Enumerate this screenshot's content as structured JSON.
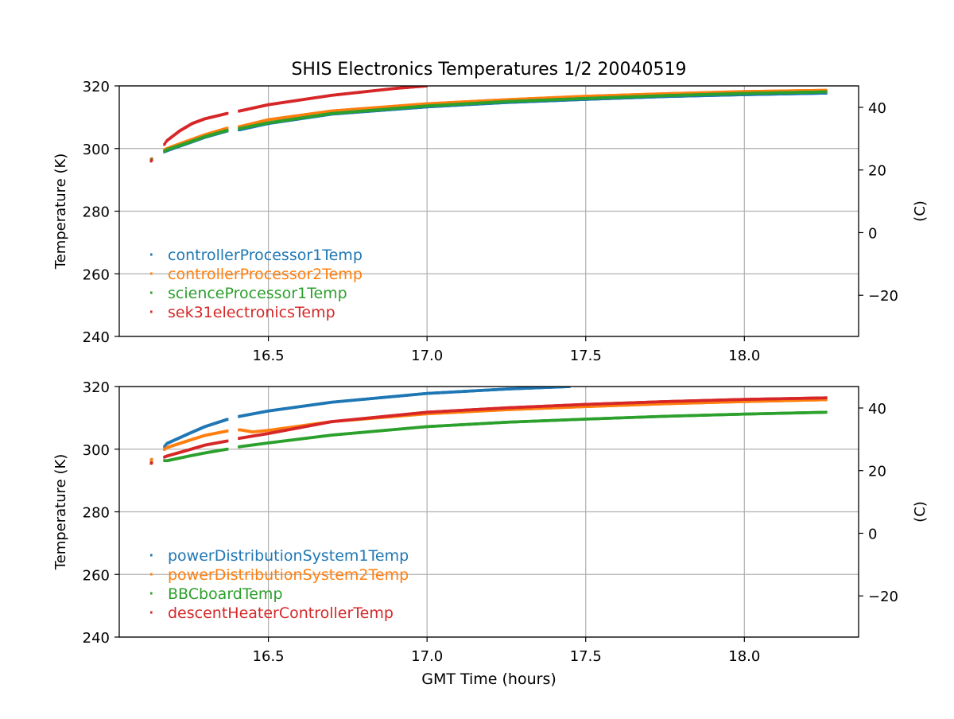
{
  "figure_title": "SHIS Electronics Temperatures 1/2 20040519",
  "xlabel": "GMT Time (hours)",
  "colors": {
    "blue": "#1f77b4",
    "orange": "#ff7f0e",
    "green": "#2ca02c",
    "red": "#d62728",
    "grid": "#b0b0b0",
    "axis": "#000000"
  },
  "chart_data": [
    {
      "type": "scatter",
      "title": "SHIS Electronics Temperatures 1/2 20040519",
      "xlabel": "",
      "ylabel": "Temperature (K)",
      "ylabel_right": "(C)",
      "xlim": [
        16.03,
        18.36
      ],
      "ylim": [
        240,
        320
      ],
      "x_ticks": [
        16.5,
        17.0,
        17.5,
        18.0
      ],
      "x_tick_labels": [
        "16.5",
        "17.0",
        "17.5",
        "18.0"
      ],
      "y_ticks": [
        240,
        260,
        280,
        300,
        320
      ],
      "y_tick_labels": [
        "240",
        "260",
        "280",
        "300",
        "320"
      ],
      "y2_ticks": [
        -20,
        0,
        20,
        40
      ],
      "y2_tick_labels": [
        "−20",
        "0",
        "20",
        "40"
      ],
      "grid": true,
      "legend_position": "lower-left",
      "series": [
        {
          "name": "controllerProcessor1Temp",
          "color": "#1f77b4",
          "points": [
            [
              16.13,
              296.5
            ],
            [
              16.15,
              298.0
            ],
            [
              16.18,
              299.3
            ],
            [
              16.25,
              301.8
            ],
            [
              16.3,
              303.6
            ],
            [
              16.37,
              305.6
            ],
            [
              16.41,
              306.0
            ],
            [
              16.5,
              308.0
            ],
            [
              16.7,
              311.0
            ],
            [
              17.0,
              313.3
            ],
            [
              17.25,
              314.7
            ],
            [
              17.5,
              315.7
            ],
            [
              17.75,
              316.6
            ],
            [
              18.0,
              317.2
            ],
            [
              18.26,
              317.7
            ]
          ]
        },
        {
          "name": "controllerProcessor2Temp",
          "color": "#ff7f0e",
          "points": [
            [
              16.13,
              296.5
            ],
            [
              16.15,
              298.2
            ],
            [
              16.18,
              300.0
            ],
            [
              16.25,
              302.6
            ],
            [
              16.3,
              304.4
            ],
            [
              16.37,
              306.5
            ],
            [
              16.41,
              307.0
            ],
            [
              16.5,
              309.2
            ],
            [
              16.7,
              312.0
            ],
            [
              17.0,
              314.3
            ],
            [
              17.25,
              315.6
            ],
            [
              17.5,
              316.7
            ],
            [
              17.75,
              317.5
            ],
            [
              18.0,
              318.2
            ],
            [
              18.26,
              318.6
            ]
          ]
        },
        {
          "name": "scienceProcessor1Temp",
          "color": "#2ca02c",
          "points": [
            [
              16.13,
              296.3
            ],
            [
              16.15,
              297.8
            ],
            [
              16.18,
              299.6
            ],
            [
              16.25,
              302.0
            ],
            [
              16.3,
              303.8
            ],
            [
              16.37,
              305.8
            ],
            [
              16.41,
              306.4
            ],
            [
              16.5,
              308.2
            ],
            [
              16.7,
              311.2
            ],
            [
              17.0,
              313.6
            ],
            [
              17.25,
              315.0
            ],
            [
              17.5,
              316.0
            ],
            [
              17.75,
              316.9
            ],
            [
              18.0,
              317.6
            ],
            [
              18.26,
              318.1
            ]
          ]
        },
        {
          "name": "sek31electronicsTemp",
          "color": "#d62728",
          "points": [
            [
              16.13,
              296.0
            ],
            [
              16.15,
              298.0
            ],
            [
              16.18,
              302.5
            ],
            [
              16.22,
              305.6
            ],
            [
              16.26,
              308.0
            ],
            [
              16.3,
              309.5
            ],
            [
              16.37,
              311.2
            ],
            [
              16.41,
              312.0
            ],
            [
              16.5,
              314.0
            ],
            [
              16.7,
              317.0
            ],
            [
              16.9,
              319.2
            ],
            [
              17.0,
              320.0
            ]
          ]
        }
      ]
    },
    {
      "type": "scatter",
      "title": "",
      "xlabel": "GMT Time (hours)",
      "ylabel": "Temperature (K)",
      "ylabel_right": "(C)",
      "xlim": [
        16.03,
        18.36
      ],
      "ylim": [
        240,
        320
      ],
      "x_ticks": [
        16.5,
        17.0,
        17.5,
        18.0
      ],
      "x_tick_labels": [
        "16.5",
        "17.0",
        "17.5",
        "18.0"
      ],
      "y_ticks": [
        240,
        260,
        280,
        300,
        320
      ],
      "y_tick_labels": [
        "240",
        "260",
        "280",
        "300",
        "320"
      ],
      "y2_ticks": [
        -20,
        0,
        20,
        40
      ],
      "y2_tick_labels": [
        "−20",
        "0",
        "20",
        "40"
      ],
      "grid": true,
      "legend_position": "lower-left",
      "series": [
        {
          "name": "powerDistributionSystem1Temp",
          "color": "#1f77b4",
          "points": [
            [
              16.13,
              296.5
            ],
            [
              16.15,
              298.0
            ],
            [
              16.18,
              301.8
            ],
            [
              16.25,
              305.0
            ],
            [
              16.3,
              307.2
            ],
            [
              16.37,
              309.5
            ],
            [
              16.41,
              310.5
            ],
            [
              16.5,
              312.2
            ],
            [
              16.7,
              315.0
            ],
            [
              17.0,
              317.8
            ],
            [
              17.25,
              319.2
            ],
            [
              17.45,
              320.0
            ]
          ]
        },
        {
          "name": "powerDistributionSystem2Temp",
          "color": "#ff7f0e",
          "points": [
            [
              16.13,
              296.5
            ],
            [
              16.15,
              298.2
            ],
            [
              16.18,
              300.5
            ],
            [
              16.25,
              302.8
            ],
            [
              16.3,
              304.4
            ],
            [
              16.37,
              305.8
            ],
            [
              16.41,
              306.2
            ],
            [
              16.45,
              305.5
            ],
            [
              16.5,
              306.0
            ],
            [
              16.7,
              308.8
            ],
            [
              17.0,
              311.3
            ],
            [
              17.25,
              312.6
            ],
            [
              17.5,
              313.6
            ],
            [
              17.75,
              314.5
            ],
            [
              18.0,
              315.2
            ],
            [
              18.26,
              315.8
            ]
          ]
        },
        {
          "name": "BBCboardTemp",
          "color": "#2ca02c",
          "points": [
            [
              16.13,
              295.5
            ],
            [
              16.15,
              296.5
            ],
            [
              16.18,
              296.3
            ],
            [
              16.25,
              297.8
            ],
            [
              16.3,
              298.8
            ],
            [
              16.37,
              300.0
            ],
            [
              16.41,
              300.8
            ],
            [
              16.5,
              302.0
            ],
            [
              16.7,
              304.5
            ],
            [
              17.0,
              307.2
            ],
            [
              17.25,
              308.6
            ],
            [
              17.5,
              309.6
            ],
            [
              17.75,
              310.5
            ],
            [
              18.0,
              311.2
            ],
            [
              18.26,
              311.8
            ]
          ]
        },
        {
          "name": "descentHeaterControllerTemp",
          "color": "#d62728",
          "points": [
            [
              16.13,
              295.5
            ],
            [
              16.15,
              296.5
            ],
            [
              16.18,
              297.8
            ],
            [
              16.25,
              299.8
            ],
            [
              16.3,
              301.3
            ],
            [
              16.37,
              302.6
            ],
            [
              16.41,
              303.5
            ],
            [
              16.5,
              305.0
            ],
            [
              16.7,
              308.8
            ],
            [
              17.0,
              311.8
            ],
            [
              17.25,
              313.2
            ],
            [
              17.5,
              314.3
            ],
            [
              17.75,
              315.2
            ],
            [
              18.0,
              315.9
            ],
            [
              18.26,
              316.4
            ]
          ]
        }
      ]
    }
  ]
}
